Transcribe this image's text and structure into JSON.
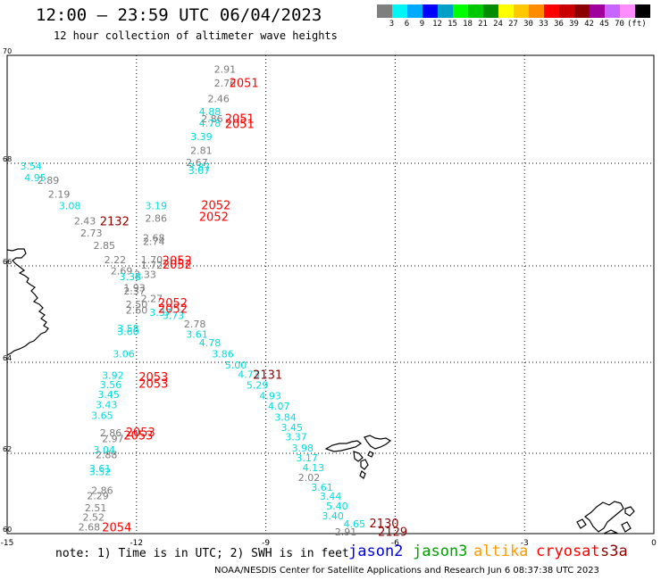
{
  "header": {
    "title": "12:00 — 23:59 UTC 06/04/2023",
    "subtitle": "12 hour collection of altimeter wave heights"
  },
  "colorbar": {
    "colors": [
      "#7f7f7f",
      "#00f5f5",
      "#00aaff",
      "#0000ff",
      "#00a0c8",
      "#00ff00",
      "#00c800",
      "#008c00",
      "#ffff00",
      "#ffc800",
      "#ff8c00",
      "#ff0000",
      "#c80000",
      "#8c0000",
      "#a0009b",
      "#c864ff",
      "#ff8cff",
      "#000000"
    ],
    "labels": [
      "3",
      "6",
      "9",
      "12",
      "15",
      "18",
      "21",
      "24",
      "27",
      "30",
      "33",
      "36",
      "39",
      "42",
      "45",
      "70",
      "(ft)"
    ]
  },
  "map": {
    "x_ticks": [
      "-15",
      "-12",
      "-9",
      "-6",
      "-3",
      "0"
    ],
    "y_ticks": [
      "70",
      "68",
      "66",
      "64",
      "62",
      "60"
    ]
  },
  "colors": {
    "jason2": "#0000dd",
    "jason3": "#00a000",
    "altika": "#ff9900",
    "cryosat": "#ff0000",
    "s3a": "#8c0000",
    "swh_gray": "#7a7a7a",
    "swh_cyan": "#00dddd"
  },
  "observations": {
    "gray": [
      {
        "label": "2.91",
        "lon": -10.2,
        "lat": 69.74
      },
      {
        "label": "2.76",
        "lon": -10.2,
        "lat": 69.49
      },
      {
        "label": "2.46",
        "lon": -10.35,
        "lat": 69.2
      },
      {
        "label": "2.86",
        "lon": -10.5,
        "lat": 68.83
      },
      {
        "label": "2.81",
        "lon": -10.75,
        "lat": 68.24
      },
      {
        "label": "2.67",
        "lon": -10.85,
        "lat": 68.02
      },
      {
        "label": "2.89",
        "lon": -14.3,
        "lat": 67.67
      },
      {
        "label": "2.19",
        "lon": -14.05,
        "lat": 67.4
      },
      {
        "label": "2.43",
        "lon": -13.45,
        "lat": 66.88
      },
      {
        "label": "2.86",
        "lon": -11.8,
        "lat": 66.93
      },
      {
        "label": "2.73",
        "lon": -13.3,
        "lat": 66.64
      },
      {
        "label": "2.68",
        "lon": -11.85,
        "lat": 66.55
      },
      {
        "label": "2.74",
        "lon": -11.85,
        "lat": 66.48
      },
      {
        "label": "2.85",
        "lon": -13.0,
        "lat": 66.4
      },
      {
        "label": "2.22",
        "lon": -12.75,
        "lat": 66.12
      },
      {
        "label": "1.70",
        "lon": -11.9,
        "lat": 66.12
      },
      {
        "label": "1.72",
        "lon": -11.9,
        "lat": 66.02
      },
      {
        "label": "2.69",
        "lon": -12.6,
        "lat": 65.9
      },
      {
        "label": "2.33",
        "lon": -12.05,
        "lat": 65.82
      },
      {
        "label": "1.93",
        "lon": -12.3,
        "lat": 65.55
      },
      {
        "label": "2.37",
        "lon": -12.3,
        "lat": 65.48
      },
      {
        "label": "2.27",
        "lon": -11.9,
        "lat": 65.32
      },
      {
        "label": "2.50",
        "lon": -12.25,
        "lat": 65.2
      },
      {
        "label": "2.60",
        "lon": -12.25,
        "lat": 65.08
      },
      {
        "label": "2.78",
        "lon": -10.9,
        "lat": 64.8
      },
      {
        "label": "2.86",
        "lon": -12.85,
        "lat": 62.45
      },
      {
        "label": "2.97",
        "lon": -12.8,
        "lat": 62.32
      },
      {
        "label": "2.88",
        "lon": -12.95,
        "lat": 61.97
      },
      {
        "label": "2.86",
        "lon": -13.05,
        "lat": 61.08
      },
      {
        "label": "2.29",
        "lon": -13.15,
        "lat": 60.95
      },
      {
        "label": "2.51",
        "lon": -13.2,
        "lat": 60.64
      },
      {
        "label": "2.52",
        "lon": -13.25,
        "lat": 60.41
      },
      {
        "label": "2.68",
        "lon": -13.35,
        "lat": 60.17
      },
      {
        "label": "2.02",
        "lon": -8.25,
        "lat": 61.4
      },
      {
        "label": "2.91",
        "lon": -7.4,
        "lat": 60.04
      }
    ],
    "cyan": [
      {
        "label": "4.88",
        "lon": -10.55,
        "lat": 68.96
      },
      {
        "label": "4.78",
        "lon": -10.55,
        "lat": 68.74
      },
      {
        "label": "3.39",
        "lon": -10.75,
        "lat": 68.5
      },
      {
        "label": "3.87",
        "lon": -10.8,
        "lat": 67.93
      },
      {
        "label": "3.07",
        "lon": -10.8,
        "lat": 67.86
      },
      {
        "label": "3.54",
        "lon": -14.7,
        "lat": 67.95
      },
      {
        "label": "4.95",
        "lon": -14.6,
        "lat": 67.72
      },
      {
        "label": "3.08",
        "lon": -13.8,
        "lat": 67.17
      },
      {
        "label": "3.19",
        "lon": -11.8,
        "lat": 67.17
      },
      {
        "label": "3.38",
        "lon": -12.4,
        "lat": 65.78
      },
      {
        "label": "3.37",
        "lon": -11.7,
        "lat": 65.04
      },
      {
        "label": "3.73",
        "lon": -11.4,
        "lat": 64.97
      },
      {
        "label": "3.61",
        "lon": -10.85,
        "lat": 64.58
      },
      {
        "label": "4.78",
        "lon": -10.55,
        "lat": 64.41
      },
      {
        "label": "3.86",
        "lon": -10.25,
        "lat": 64.18
      },
      {
        "label": "5.00",
        "lon": -9.95,
        "lat": 63.94
      },
      {
        "label": "4.73",
        "lon": -9.65,
        "lat": 63.74
      },
      {
        "label": "5.29",
        "lon": -9.45,
        "lat": 63.5
      },
      {
        "label": "4.93",
        "lon": -9.15,
        "lat": 63.26
      },
      {
        "label": "4.07",
        "lon": -8.95,
        "lat": 63.04
      },
      {
        "label": "3.84",
        "lon": -8.8,
        "lat": 62.79
      },
      {
        "label": "3.45",
        "lon": -8.65,
        "lat": 62.57
      },
      {
        "label": "3.37",
        "lon": -8.55,
        "lat": 62.36
      },
      {
        "label": "3.98",
        "lon": -8.4,
        "lat": 62.12
      },
      {
        "label": "3.17",
        "lon": -8.3,
        "lat": 61.89
      },
      {
        "label": "4.13",
        "lon": -8.15,
        "lat": 61.65
      },
      {
        "label": "3.61",
        "lon": -7.95,
        "lat": 61.16
      },
      {
        "label": "3.44",
        "lon": -7.75,
        "lat": 60.93
      },
      {
        "label": "5.40",
        "lon": -7.6,
        "lat": 60.69
      },
      {
        "label": "3.40",
        "lon": -7.7,
        "lat": 60.45
      },
      {
        "label": "4.65",
        "lon": -7.2,
        "lat": 60.25
      },
      {
        "label": "3.58",
        "lon": -12.45,
        "lat": 64.7
      },
      {
        "label": "3.60",
        "lon": -12.45,
        "lat": 64.64
      },
      {
        "label": "3.06",
        "lon": -12.55,
        "lat": 64.18
      },
      {
        "label": "3.92",
        "lon": -12.8,
        "lat": 63.72
      },
      {
        "label": "3.56",
        "lon": -12.85,
        "lat": 63.51
      },
      {
        "label": "3.45",
        "lon": -12.9,
        "lat": 63.29
      },
      {
        "label": "3.43",
        "lon": -12.95,
        "lat": 63.07
      },
      {
        "label": "3.65",
        "lon": -13.05,
        "lat": 62.83
      },
      {
        "label": "3.04",
        "lon": -13.0,
        "lat": 62.08
      },
      {
        "label": "3.61",
        "lon": -13.1,
        "lat": 61.62
      },
      {
        "label": "3.52",
        "lon": -13.1,
        "lat": 61.55
      }
    ],
    "red": [
      {
        "label": "2051",
        "lon": -9.85,
        "lat": 69.48
      },
      {
        "label": "2051",
        "lon": -9.95,
        "lat": 68.82
      },
      {
        "label": "2051",
        "lon": -9.95,
        "lat": 68.72
      },
      {
        "label": "2052",
        "lon": -10.5,
        "lat": 67.17
      },
      {
        "label": "2052",
        "lon": -10.55,
        "lat": 66.95
      },
      {
        "label": "2052",
        "lon": -11.4,
        "lat": 66.1
      },
      {
        "label": "2052",
        "lon": -11.4,
        "lat": 66.02
      },
      {
        "label": "2052",
        "lon": -11.5,
        "lat": 65.22
      },
      {
        "label": "2052",
        "lon": -11.5,
        "lat": 65.1
      },
      {
        "label": "2053",
        "lon": -11.95,
        "lat": 63.67
      },
      {
        "label": "2053",
        "lon": -11.95,
        "lat": 63.52
      },
      {
        "label": "2053",
        "lon": -12.25,
        "lat": 62.45
      },
      {
        "label": "2053",
        "lon": -12.3,
        "lat": 62.38
      },
      {
        "label": "2054",
        "lon": -12.8,
        "lat": 60.14
      }
    ],
    "darkred": [
      {
        "label": "2132",
        "lon": -12.85,
        "lat": 66.86
      },
      {
        "label": "2131",
        "lon": -9.3,
        "lat": 63.72
      },
      {
        "label": "2130",
        "lon": -6.6,
        "lat": 60.25
      },
      {
        "label": "2129",
        "lon": -6.4,
        "lat": 60.03
      }
    ]
  },
  "note": "note: 1) Time is in UTC; 2) SWH is in feet",
  "legend": {
    "jason2": "jason2",
    "jason3": "jason3",
    "altika": "altika",
    "cryosat": "cryosat",
    "s3a": "s3a"
  },
  "footer": "NOAA/NESDIS Center for Satellite Applications and Research   Jun  6 08:37:38 UTC 2023"
}
